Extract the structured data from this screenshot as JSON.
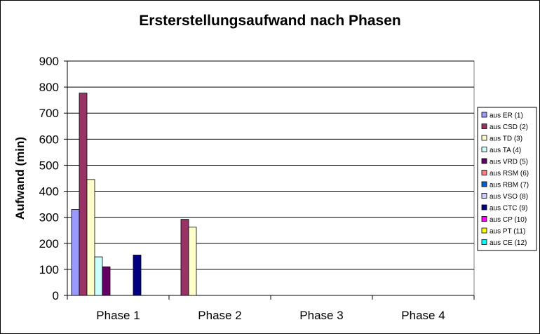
{
  "chart_data": {
    "type": "bar",
    "title": "Ersterstellungsaufwand nach Phasen",
    "xlabel": "",
    "ylabel": "Aufwand (min)",
    "ylim": [
      0,
      900
    ],
    "yticks": [
      0,
      100,
      200,
      300,
      400,
      500,
      600,
      700,
      800,
      900
    ],
    "grid": true,
    "legend": "right",
    "categories": [
      "Phase 1",
      "Phase 2",
      "Phase 3",
      "Phase 4"
    ],
    "series": [
      {
        "name": "aus ER (1)",
        "color": "#9999ff",
        "values": [
          330,
          0,
          0,
          0
        ]
      },
      {
        "name": "aus CSD (2)",
        "color": "#993366",
        "values": [
          777,
          292,
          0,
          0
        ]
      },
      {
        "name": "aus TD (3)",
        "color": "#ffffcc",
        "values": [
          445,
          262,
          0,
          0
        ]
      },
      {
        "name": "aus TA (4)",
        "color": "#ccffff",
        "values": [
          148,
          0,
          0,
          0
        ]
      },
      {
        "name": "aus VRD (5)",
        "color": "#660066",
        "values": [
          110,
          0,
          0,
          0
        ]
      },
      {
        "name": "aus RSM (6)",
        "color": "#ff8080",
        "values": [
          0,
          0,
          0,
          0
        ]
      },
      {
        "name": "aus RBM (7)",
        "color": "#0066cc",
        "values": [
          0,
          0,
          0,
          0
        ]
      },
      {
        "name": "aus VSO (8)",
        "color": "#ccccff",
        "values": [
          0,
          0,
          0,
          0
        ]
      },
      {
        "name": "aus CTC (9)",
        "color": "#000080",
        "values": [
          155,
          0,
          0,
          0
        ]
      },
      {
        "name": "aus CP (10)",
        "color": "#ff00ff",
        "values": [
          0,
          0,
          0,
          0
        ]
      },
      {
        "name": "aus PT (11)",
        "color": "#ffff00",
        "values": [
          0,
          0,
          0,
          0
        ]
      },
      {
        "name": "aus CE (12)",
        "color": "#00ffff",
        "values": [
          0,
          0,
          0,
          0
        ]
      }
    ]
  }
}
